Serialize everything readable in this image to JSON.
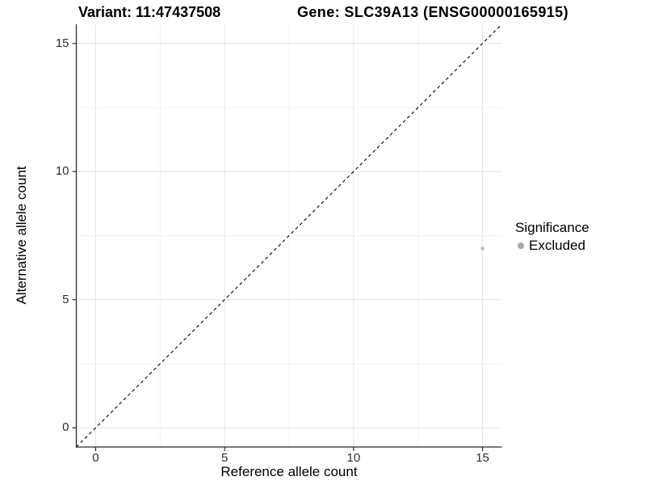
{
  "chart_data": {
    "type": "scatter",
    "title_left": "Variant: 11:47437508",
    "title_right": "Gene: SLC39A13 (ENSG00000165915)",
    "xlabel": "Reference allele count",
    "ylabel": "Alternative allele count",
    "xlim": [
      -0.75,
      15.75
    ],
    "ylim": [
      -0.75,
      15.75
    ],
    "x_ticks": [
      0,
      5,
      10,
      15
    ],
    "y_ticks": [
      0,
      5,
      10,
      15
    ],
    "grid": {
      "major": [
        0,
        5,
        10,
        15
      ],
      "minor": [
        2.5,
        7.5,
        12.5
      ]
    },
    "reference_line": {
      "line_style": "dashed",
      "from": [
        -0.75,
        -0.75
      ],
      "to": [
        15.75,
        15.75
      ]
    },
    "series": [
      {
        "name": "Excluded",
        "color": "#bdbdbd",
        "point_radius": 2.3,
        "points": [
          [
            15,
            7
          ]
        ]
      }
    ],
    "legend": {
      "title": "Significance",
      "position": "right",
      "items": [
        {
          "label": "Excluded",
          "color": "#a9a9a9"
        }
      ]
    },
    "style": {
      "background": "#ffffff",
      "grid_major": "#e4e4e4",
      "grid_minor": "#f1f1f1",
      "axis_line": "#2b2b2b",
      "tick_color": "#2b2b2b",
      "ref_line": "#000000"
    }
  }
}
